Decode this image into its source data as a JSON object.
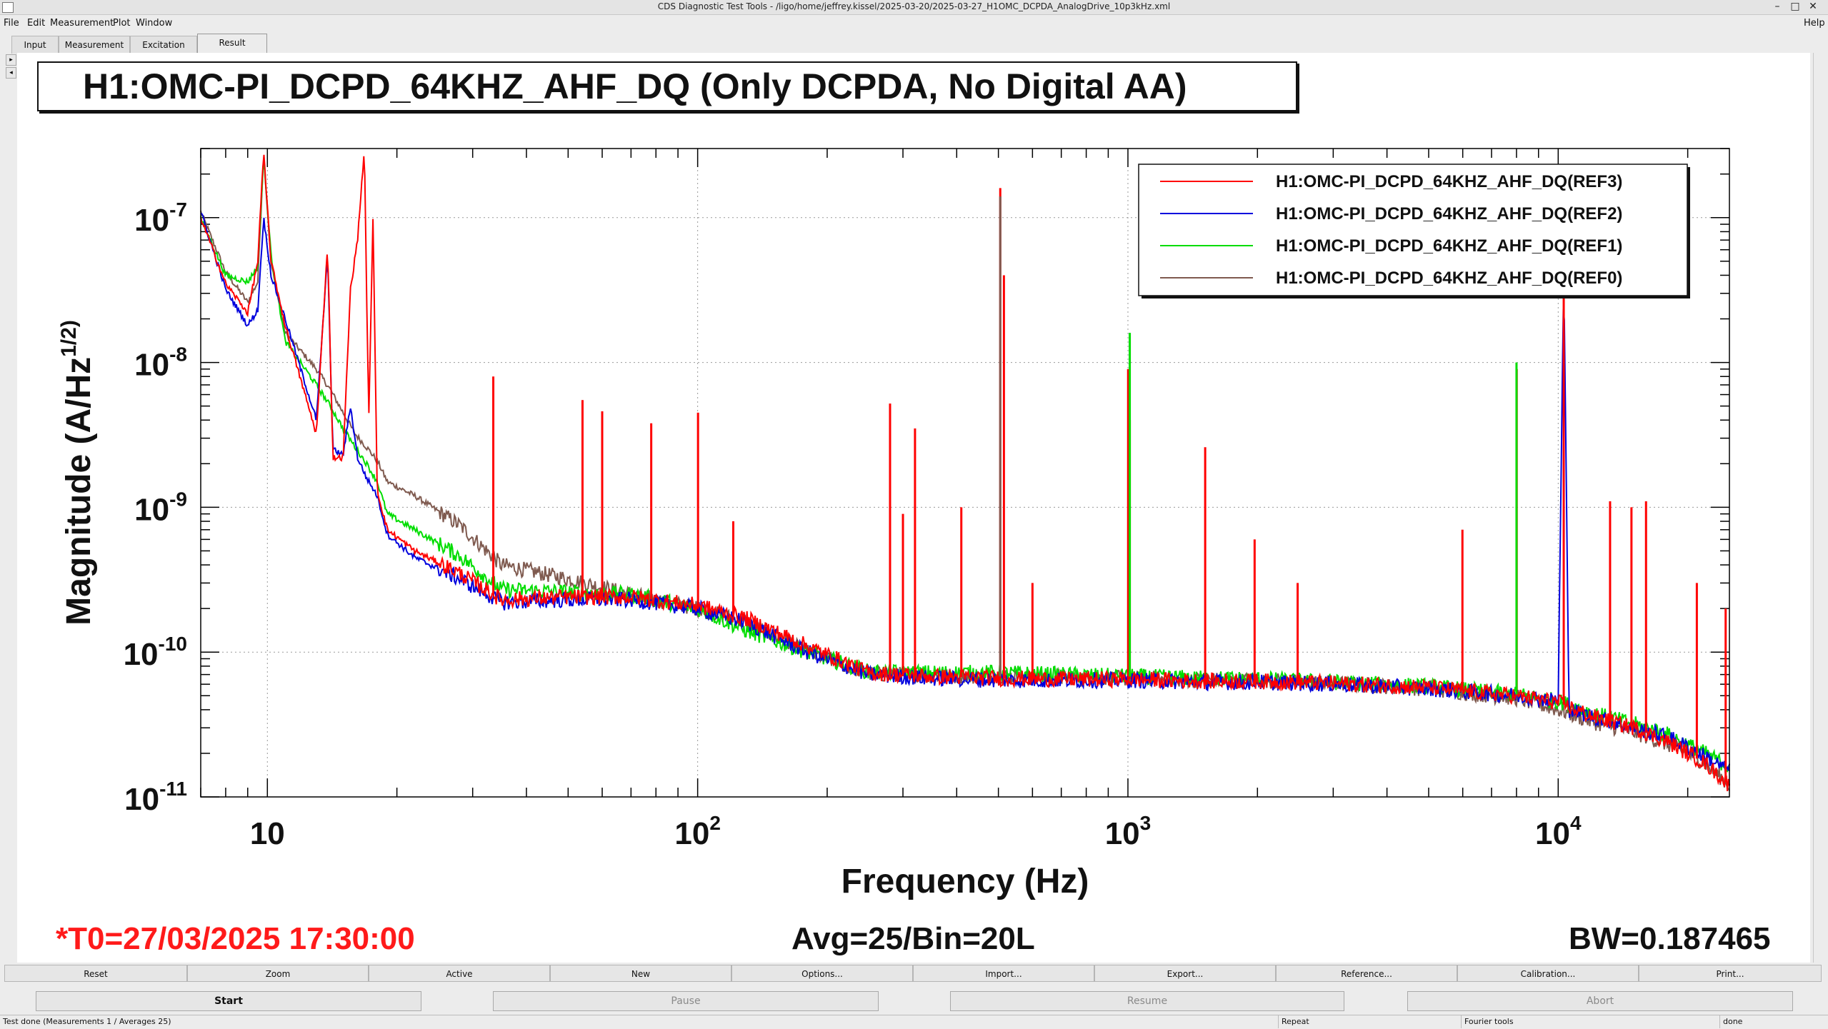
{
  "window": {
    "title": "CDS Diagnostic Test Tools - /ligo/home/jeffrey.kissel/2025-03-20/2025-03-27_H1OMC_DCPDA_AnalogDrive_10p3kHz.xml",
    "controls": [
      "–",
      "□",
      "✕"
    ]
  },
  "menu": {
    "items": [
      "File",
      "Edit",
      "Measurement",
      "Plot",
      "Window"
    ],
    "help": "Help"
  },
  "tabs": [
    "Input",
    "Measurement",
    "Excitation",
    "Result"
  ],
  "active_tab": "Result",
  "side_arrows": [
    "▸",
    "◂"
  ],
  "plot": {
    "title": "H1:OMC-PI_DCPD_64KHZ_AHF_DQ (Only DCPDA, No Digital AA)",
    "t0": "*T0=27/03/2025 17:30:00",
    "avg": "Avg=25/Bin=20L",
    "bw": "BW=0.187465",
    "colors": {
      "title_t0": "#ff1a1a",
      "text": "#111111"
    }
  },
  "chart_data": {
    "type": "line",
    "xscale": "log",
    "yscale": "log",
    "xlim": [
      7,
      25000
    ],
    "ylim": [
      1e-11,
      3e-07
    ],
    "xlabel": "Frequency (Hz)",
    "ylabel": "Magnitude (A/Hz^(1/2))",
    "xtick_labels": [
      "10",
      "10^2",
      "10^3",
      "10^4"
    ],
    "ytick_labels": [
      "10^-7",
      "10^-8",
      "10^-9",
      "10^-10",
      "10^-11"
    ],
    "grid": true,
    "legend_position": "top-right",
    "series": [
      {
        "name": "H1:OMC-PI_DCPD_64KHZ_AHF_DQ(REF3)",
        "color": "#ff0000",
        "x": [
          7,
          8,
          9,
          9.5,
          9.8,
          10.2,
          11,
          13,
          13.8,
          14.2,
          15,
          15.6,
          16.2,
          16.8,
          17.2,
          17.6,
          18,
          19,
          22,
          28,
          35,
          50,
          70,
          100,
          130,
          180,
          250,
          350,
          500,
          700,
          1000,
          1500,
          2000,
          3000,
          5000,
          8000,
          10000,
          12000,
          15000,
          18000,
          20000,
          22000,
          25000
        ],
        "y": [
          1e-07,
          3.5e-08,
          2.2e-08,
          5e-08,
          2.8e-07,
          5e-08,
          1.8e-08,
          3.2e-09,
          6.5e-08,
          2.2e-09,
          2.2e-09,
          3.2e-08,
          7e-08,
          3e-07,
          4e-09,
          1e-07,
          1.3e-09,
          7e-10,
          5e-10,
          3.5e-10,
          2.3e-10,
          2.4e-10,
          2.4e-10,
          2.1e-10,
          1.7e-10,
          1.1e-10,
          7.2e-11,
          6.8e-11,
          6.6e-11,
          6.5e-11,
          6.5e-11,
          6.3e-11,
          6.3e-11,
          6.1e-11,
          5.7e-11,
          5e-11,
          4.5e-11,
          3.6e-11,
          3e-11,
          2.4e-11,
          2e-11,
          1.7e-11,
          1.2e-11
        ]
      },
      {
        "name": "H1:OMC-PI_DCPD_64KHZ_AHF_DQ(REF2)",
        "color": "#0000dd",
        "x": [
          7,
          8,
          9,
          9.5,
          9.8,
          10.2,
          11,
          13,
          13.8,
          14.2,
          15,
          15.6,
          16.2,
          17,
          18,
          19,
          22,
          28,
          35,
          50,
          70,
          100,
          130,
          180,
          250,
          350,
          500,
          700,
          1000,
          1500,
          2000,
          3000,
          5000,
          8000,
          10000,
          10300,
          10600,
          12000,
          15000,
          18000,
          20000,
          22000,
          25000
        ],
        "y": [
          1.1e-07,
          3.2e-08,
          1.8e-08,
          2.3e-08,
          1e-07,
          4e-08,
          2e-08,
          4e-09,
          5.5e-08,
          2.5e-09,
          2.3e-09,
          5e-09,
          2.2e-09,
          1.6e-09,
          1.2e-09,
          6.5e-10,
          4.5e-10,
          3.2e-10,
          2.2e-10,
          2.3e-10,
          2.3e-10,
          2e-10,
          1.6e-10,
          1e-10,
          7e-11,
          6.6e-11,
          6.4e-11,
          6.4e-11,
          6.4e-11,
          6.2e-11,
          6.2e-11,
          6e-11,
          5.6e-11,
          5e-11,
          4.6e-11,
          4e-08,
          4e-11,
          3.6e-11,
          3e-11,
          2.6e-11,
          2.2e-11,
          1.9e-11,
          1.5e-11
        ]
      },
      {
        "name": "H1:OMC-PI_DCPD_64KHZ_AHF_DQ(REF1)",
        "color": "#00dd00",
        "x": [
          7,
          8,
          9,
          9.5,
          9.8,
          10.2,
          11,
          13,
          14,
          15,
          16,
          17,
          18,
          19,
          22,
          28,
          35,
          50,
          70,
          100,
          130,
          180,
          250,
          350,
          500,
          700,
          1000,
          1500,
          2000,
          3000,
          5000,
          8000,
          10000,
          12000,
          15000,
          18000,
          20000,
          22000,
          25000
        ],
        "y": [
          1e-07,
          4e-08,
          3.6e-08,
          4.6e-08,
          2.6e-07,
          5.5e-08,
          1.4e-08,
          7e-09,
          5e-09,
          3.5e-09,
          2.6e-09,
          2e-09,
          1.5e-09,
          9e-10,
          7e-10,
          4.6e-10,
          2.7e-10,
          2.6e-10,
          2.5e-10,
          2e-10,
          1.4e-10,
          1e-10,
          7.3e-11,
          7.2e-11,
          7.2e-11,
          7e-11,
          6.8e-11,
          6.6e-11,
          6.5e-11,
          6.2e-11,
          5.8e-11,
          5.1e-11,
          4.6e-11,
          3.8e-11,
          3.2e-11,
          2.7e-11,
          2.3e-11,
          2e-11,
          1.6e-11
        ]
      },
      {
        "name": "H1:OMC-PI_DCPD_64KHZ_AHF_DQ(REF0)",
        "color": "#7f5a4f",
        "x": [
          7,
          8,
          9,
          9.5,
          9.8,
          10.2,
          11,
          13,
          14,
          15,
          16,
          17,
          18,
          19,
          22,
          28,
          35,
          50,
          70,
          100,
          130,
          180,
          250,
          350,
          500,
          700,
          1000,
          1500,
          2000,
          3000,
          5000,
          8000,
          10000,
          12000,
          15000,
          18000,
          20000,
          22000,
          25000
        ],
        "y": [
          1.1e-07,
          4.2e-08,
          2.6e-08,
          3.6e-08,
          2.8e-07,
          4.8e-08,
          1.6e-08,
          9e-09,
          6.5e-09,
          4.5e-09,
          3.2e-09,
          2.6e-09,
          2.1e-09,
          1.5e-09,
          1.2e-09,
          7.5e-10,
          4e-10,
          3.2e-10,
          2.5e-10,
          2e-10,
          1.6e-10,
          1e-10,
          7.1e-11,
          6.9e-11,
          6.8e-11,
          6.7e-11,
          6.6e-11,
          6.4e-11,
          6.4e-11,
          6.1e-11,
          5.6e-11,
          4.8e-11,
          4e-11,
          3.3e-11,
          2.8e-11,
          2.3e-11,
          2e-11,
          1.7e-11,
          1.2e-11
        ]
      }
    ],
    "lines": [
      {
        "series": 0,
        "f": 33.5,
        "peak": 8e-09
      },
      {
        "series": 0,
        "f": 54,
        "peak": 5.5e-09
      },
      {
        "series": 0,
        "f": 60,
        "peak": 4.6e-09
      },
      {
        "series": 0,
        "f": 78,
        "peak": 3.8e-09
      },
      {
        "series": 0,
        "f": 100.2,
        "peak": 4.5e-09
      },
      {
        "series": 0,
        "f": 121,
        "peak": 8e-10
      },
      {
        "series": 0,
        "f": 280,
        "peak": 5.2e-09
      },
      {
        "series": 0,
        "f": 300,
        "peak": 9e-10
      },
      {
        "series": 0,
        "f": 320,
        "peak": 3.5e-09
      },
      {
        "series": 0,
        "f": 410,
        "peak": 1e-09
      },
      {
        "series": 0,
        "f": 505,
        "peak": 1.6e-07
      },
      {
        "series": 0,
        "f": 515,
        "peak": 4e-08
      },
      {
        "series": 0,
        "f": 600,
        "peak": 3e-10
      },
      {
        "series": 0,
        "f": 1001,
        "peak": 9e-09
      },
      {
        "series": 0,
        "f": 1010,
        "peak": 4e-09
      },
      {
        "series": 0,
        "f": 1512,
        "peak": 2.6e-09
      },
      {
        "series": 0,
        "f": 1970,
        "peak": 6e-10
      },
      {
        "series": 0,
        "f": 2480,
        "peak": 3e-10
      },
      {
        "series": 0,
        "f": 5990,
        "peak": 7e-10
      },
      {
        "series": 0,
        "f": 8010,
        "peak": 9e-09
      },
      {
        "series": 0,
        "f": 10300,
        "peak": 3e-08
      },
      {
        "series": 0,
        "f": 13200,
        "peak": 1.1e-09
      },
      {
        "series": 0,
        "f": 14800,
        "peak": 1e-09
      },
      {
        "series": 0,
        "f": 16000,
        "peak": 1.1e-09
      },
      {
        "series": 0,
        "f": 21000,
        "peak": 3e-10
      },
      {
        "series": 0,
        "f": 24500,
        "peak": 2e-10
      },
      {
        "series": 2,
        "f": 1010,
        "peak": 1.6e-08
      },
      {
        "series": 2,
        "f": 8000,
        "peak": 1e-08
      },
      {
        "series": 3,
        "f": 505,
        "peak": 1.4e-07
      }
    ]
  },
  "toolbar": [
    "Reset",
    "Zoom",
    "Active",
    "New",
    "Options...",
    "Import...",
    "Export...",
    "Reference...",
    "Calibration...",
    "Print..."
  ],
  "controls": [
    {
      "label": "Start",
      "enabled": true
    },
    {
      "label": "Pause",
      "enabled": false
    },
    {
      "label": "Resume",
      "enabled": false
    },
    {
      "label": "Abort",
      "enabled": false
    }
  ],
  "status": {
    "message": "Test done (Measurements 1 / Averages 25)",
    "repeat": "Repeat",
    "tool": "Fourier tools",
    "state": "done"
  }
}
